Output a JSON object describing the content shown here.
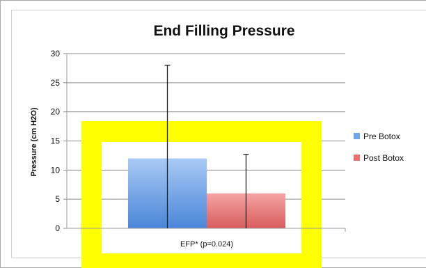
{
  "chart_data": {
    "type": "bar",
    "title": "End Filling Pressure",
    "xlabel": "",
    "ylabel": "Pressure (cm H2O)",
    "ylim": [
      0,
      30
    ],
    "yticks": [
      0,
      5,
      10,
      15,
      20,
      25,
      30
    ],
    "categories": [
      "EFP* (p=0.024)"
    ],
    "series": [
      {
        "name": "Pre Botox",
        "values": [
          12
        ],
        "error_upper": [
          28
        ],
        "error_lower": [
          0
        ],
        "color": "#6fa6ea"
      },
      {
        "name": "Post Botox",
        "values": [
          6
        ],
        "error_upper": [
          12.7
        ],
        "error_lower": [
          0
        ],
        "color": "#ea6f6f"
      }
    ],
    "grid": true,
    "legend": "right",
    "highlight_color": "#ffff00"
  }
}
